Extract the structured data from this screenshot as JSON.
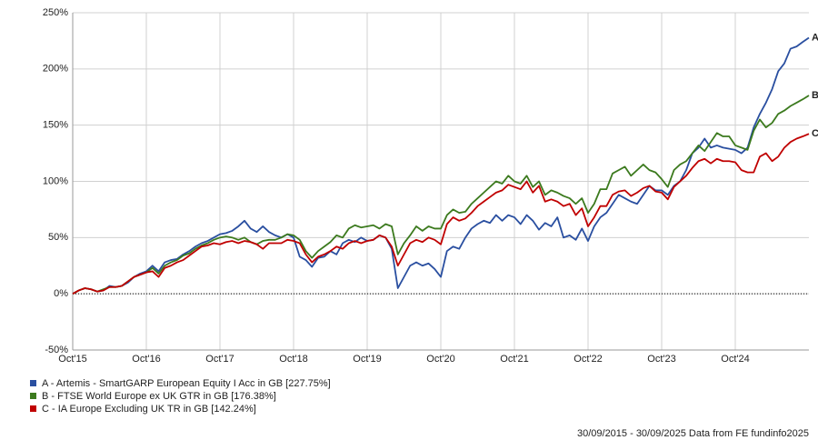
{
  "chart_data": {
    "type": "line",
    "x": [
      0,
      1,
      2,
      3,
      4,
      5,
      6,
      7,
      8,
      9,
      10,
      11,
      12,
      13,
      14,
      15,
      16,
      17,
      18,
      19,
      20,
      21,
      22,
      23,
      24,
      25,
      26,
      27,
      28,
      29,
      30,
      31,
      32,
      33,
      34,
      35,
      36,
      37,
      38,
      39,
      40,
      41,
      42,
      43,
      44,
      45,
      46,
      47,
      48,
      49,
      50,
      51,
      52,
      53,
      54,
      55,
      56,
      57,
      58,
      59,
      60,
      61,
      62,
      63,
      64,
      65,
      66,
      67,
      68,
      69,
      70,
      71,
      72,
      73,
      74,
      75,
      76,
      77,
      78,
      79,
      80,
      81,
      82,
      83,
      84,
      85,
      86,
      87,
      88,
      89,
      90,
      91,
      92,
      93,
      94,
      95,
      96,
      97,
      98,
      99,
      100,
      101,
      102,
      103,
      104,
      105,
      106,
      107,
      108,
      109,
      110,
      111,
      112,
      113,
      114,
      115,
      116,
      117,
      118,
      119,
      120
    ],
    "xlim": [
      0,
      120
    ],
    "xticks": [
      {
        "value": 0,
        "label": "Oct'15"
      },
      {
        "value": 12,
        "label": "Oct'16"
      },
      {
        "value": 24,
        "label": "Oct'17"
      },
      {
        "value": 36,
        "label": "Oct'18"
      },
      {
        "value": 48,
        "label": "Oct'19"
      },
      {
        "value": 60,
        "label": "Oct'20"
      },
      {
        "value": 72,
        "label": "Oct'21"
      },
      {
        "value": 84,
        "label": "Oct'22"
      },
      {
        "value": 96,
        "label": "Oct'23"
      },
      {
        "value": 108,
        "label": "Oct'24"
      }
    ],
    "ylim": [
      -50,
      250
    ],
    "yticks": [
      {
        "value": -50,
        "label": "-50%"
      },
      {
        "value": 0,
        "label": "0%"
      },
      {
        "value": 50,
        "label": "50%"
      },
      {
        "value": 100,
        "label": "100%"
      },
      {
        "value": 150,
        "label": "150%"
      },
      {
        "value": 200,
        "label": "200%"
      },
      {
        "value": 250,
        "label": "250%"
      }
    ],
    "grid": true,
    "series": [
      {
        "name": "A - Artemis - SmartGARP European Equity I Acc in GB [227.75%]",
        "label": "A",
        "color": "#2a4fa0",
        "values": [
          0,
          3,
          5,
          4,
          2,
          3,
          7,
          6,
          7,
          10,
          15,
          18,
          20,
          25,
          20,
          28,
          30,
          31,
          35,
          38,
          42,
          45,
          47,
          50,
          53,
          54,
          56,
          60,
          65,
          58,
          55,
          60,
          55,
          52,
          50,
          53,
          50,
          33,
          30,
          24,
          32,
          33,
          38,
          35,
          45,
          48,
          46,
          50,
          47,
          48,
          52,
          50,
          40,
          5,
          15,
          25,
          28,
          25,
          27,
          22,
          15,
          38,
          42,
          40,
          50,
          58,
          62,
          65,
          63,
          70,
          65,
          70,
          68,
          62,
          70,
          65,
          57,
          63,
          60,
          68,
          50,
          52,
          48,
          58,
          47,
          60,
          68,
          72,
          80,
          88,
          85,
          82,
          80,
          88,
          96,
          92,
          92,
          88,
          96,
          100,
          110,
          125,
          130,
          138,
          130,
          132,
          130,
          129,
          128,
          125,
          130,
          148,
          160,
          170,
          182,
          198,
          205,
          218,
          220,
          224,
          227.75
        ]
      },
      {
        "name": "B - FTSE World Europe ex UK GTR in GB [176.38%]",
        "label": "B",
        "color": "#3c7a1e",
        "values": [
          0,
          3,
          5,
          4,
          2,
          4,
          6,
          6,
          7,
          11,
          15,
          17,
          19,
          23,
          18,
          25,
          28,
          30,
          34,
          36,
          40,
          43,
          45,
          48,
          50,
          51,
          50,
          48,
          50,
          46,
          44,
          47,
          48,
          48,
          50,
          53,
          52,
          48,
          38,
          32,
          38,
          42,
          46,
          52,
          50,
          58,
          61,
          59,
          60,
          61,
          58,
          62,
          60,
          35,
          45,
          52,
          60,
          56,
          60,
          58,
          58,
          70,
          75,
          72,
          73,
          80,
          85,
          90,
          95,
          100,
          98,
          105,
          100,
          98,
          105,
          95,
          100,
          88,
          92,
          90,
          87,
          85,
          80,
          85,
          72,
          80,
          93,
          93,
          107,
          110,
          113,
          105,
          110,
          115,
          110,
          108,
          102,
          95,
          110,
          115,
          118,
          125,
          132,
          127,
          135,
          143,
          140,
          140,
          132,
          130,
          128,
          145,
          155,
          148,
          152,
          160,
          163,
          167,
          170,
          173,
          176.38
        ]
      },
      {
        "name": "C - IA Europe Excluding UK TR in GB [142.24%]",
        "label": "C",
        "color": "#c00000",
        "values": [
          0,
          3,
          5,
          4,
          2,
          3,
          6,
          6,
          7,
          11,
          15,
          17,
          19,
          20,
          15,
          23,
          25,
          28,
          30,
          34,
          38,
          42,
          43,
          45,
          44,
          46,
          47,
          45,
          47,
          46,
          44,
          40,
          45,
          45,
          45,
          48,
          47,
          45,
          35,
          28,
          33,
          35,
          38,
          42,
          40,
          45,
          47,
          45,
          47,
          48,
          52,
          50,
          42,
          25,
          35,
          45,
          48,
          46,
          50,
          48,
          44,
          62,
          68,
          65,
          67,
          72,
          78,
          82,
          86,
          90,
          92,
          97,
          95,
          93,
          100,
          90,
          96,
          82,
          84,
          82,
          78,
          80,
          70,
          76,
          60,
          68,
          78,
          78,
          88,
          91,
          92,
          87,
          90,
          94,
          96,
          91,
          90,
          84,
          95,
          100,
          105,
          112,
          118,
          120,
          116,
          120,
          118,
          118,
          117,
          110,
          108,
          108,
          122,
          125,
          118,
          122,
          130,
          135,
          138,
          140,
          142.24
        ]
      }
    ],
    "footer": "30/09/2015 - 30/09/2025 Data from FE fundinfo2025"
  }
}
